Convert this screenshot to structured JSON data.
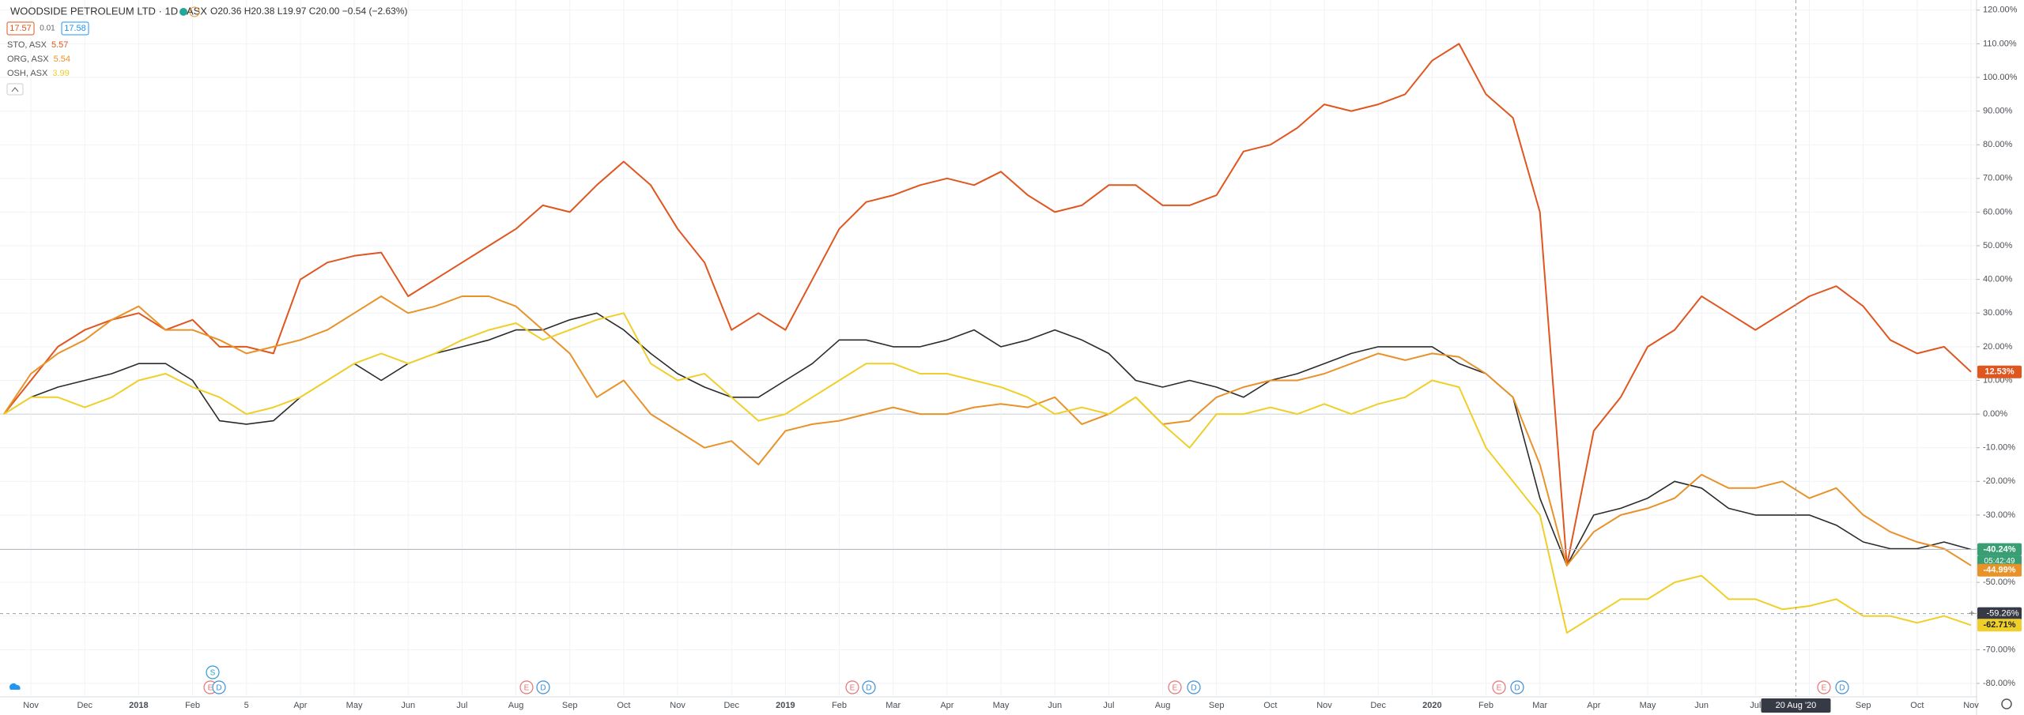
{
  "chart_data": {
    "type": "line",
    "title": "WOODSIDE PETROLEUM LTD · 1D · ASX",
    "ohlc": "O20.36 H20.38 L19.97 C20.00 −0.54 (−2.63%)",
    "bid": "17.57",
    "spread": "0.01",
    "ask": "17.58",
    "categories": [
      null,
      "Nov",
      null,
      "Dec",
      null,
      "2018",
      null,
      "Feb",
      null,
      "5",
      null,
      "Apr",
      null,
      "May",
      null,
      "Jun",
      null,
      "Jul",
      null,
      "Aug",
      null,
      "Sep",
      null,
      "Oct",
      null,
      "Nov",
      null,
      "Dec",
      null,
      "2019",
      null,
      "Feb",
      null,
      "Mar",
      null,
      "Apr",
      null,
      "May",
      null,
      "Jun",
      null,
      "Jul",
      null,
      "Aug",
      null,
      "Sep",
      null,
      "Oct",
      null,
      "Nov",
      null,
      "Dec",
      null,
      "2020",
      null,
      "Feb",
      null,
      "Mar",
      null,
      "Apr",
      null,
      "May",
      null,
      "Jun",
      null,
      "Jul",
      null,
      "Aug",
      null,
      "Sep",
      null,
      "Oct",
      null,
      "Nov"
    ],
    "main": {
      "color": "#2b2b2b",
      "price_label": "-40.24%",
      "last": -40.24,
      "countdown": "05:42:49",
      "values": [
        0,
        5,
        8,
        10,
        12,
        15,
        15,
        10,
        -2,
        -3,
        -2,
        5,
        10,
        15,
        10,
        15,
        18,
        20,
        22,
        25,
        25,
        28,
        30,
        25,
        18,
        12,
        8,
        5,
        5,
        10,
        15,
        22,
        22,
        20,
        20,
        22,
        25,
        20,
        22,
        25,
        22,
        18,
        10,
        8,
        10,
        8,
        5,
        10,
        12,
        15,
        18,
        20,
        20,
        20,
        15,
        12,
        5,
        -25,
        -45,
        -30,
        -28,
        -25,
        -20,
        -22,
        -28,
        -30,
        -30,
        -30,
        -33,
        -38,
        -40,
        -40,
        -38,
        -40.24
      ]
    },
    "series": [
      {
        "name": "STO, ASX",
        "quote": "5.57",
        "color": "#e0561f",
        "price_label": "12.53%",
        "last": 12.53,
        "values": [
          0,
          10,
          20,
          25,
          28,
          30,
          25,
          28,
          20,
          20,
          18,
          40,
          45,
          47,
          48,
          35,
          40,
          45,
          50,
          55,
          62,
          60,
          68,
          75,
          68,
          55,
          45,
          25,
          30,
          25,
          40,
          55,
          63,
          65,
          68,
          70,
          68,
          72,
          65,
          60,
          62,
          68,
          68,
          62,
          62,
          65,
          78,
          80,
          85,
          92,
          90,
          92,
          95,
          105,
          110,
          95,
          88,
          60,
          -45,
          -5,
          5,
          20,
          25,
          35,
          30,
          25,
          30,
          35,
          38,
          32,
          22,
          18,
          20,
          12.53
        ]
      },
      {
        "name": "ORG, ASX",
        "quote": "5.54",
        "color": "#e8922a",
        "price_label": "-44.99%",
        "last": -44.99,
        "values": [
          0,
          12,
          18,
          22,
          28,
          32,
          25,
          25,
          22,
          18,
          20,
          22,
          25,
          30,
          35,
          30,
          32,
          35,
          35,
          32,
          25,
          18,
          5,
          10,
          0,
          -5,
          -10,
          -8,
          -15,
          -5,
          -3,
          -2,
          0,
          2,
          0,
          0,
          2,
          3,
          2,
          5,
          -3,
          0,
          5,
          -3,
          -2,
          5,
          8,
          10,
          10,
          12,
          15,
          18,
          16,
          18,
          17,
          12,
          5,
          -15,
          -45,
          -35,
          -30,
          -28,
          -25,
          -18,
          -22,
          -22,
          -20,
          -25,
          -22,
          -30,
          -35,
          -38,
          -40,
          -44.99
        ]
      },
      {
        "name": "OSH, ASX",
        "quote": "3.99",
        "color": "#f0cf2a",
        "price_label": "-62.71%",
        "last": -62.71,
        "values": [
          0,
          5,
          5,
          2,
          5,
          10,
          12,
          8,
          5,
          0,
          2,
          5,
          10,
          15,
          18,
          15,
          18,
          22,
          25,
          27,
          22,
          25,
          28,
          30,
          15,
          10,
          12,
          5,
          -2,
          0,
          5,
          10,
          15,
          15,
          12,
          12,
          10,
          8,
          5,
          0,
          2,
          0,
          5,
          -3,
          -10,
          0,
          0,
          2,
          0,
          3,
          0,
          3,
          5,
          10,
          8,
          -10,
          -20,
          -30,
          -65,
          -60,
          -55,
          -55,
          -50,
          -48,
          -55,
          -55,
          -58,
          -57,
          -55,
          -60,
          -60,
          -62,
          -60,
          -62.71
        ]
      }
    ],
    "crosshair": {
      "date": "20 Aug '20",
      "value": -59.26,
      "label": "-59.26%"
    },
    "events": [
      "S",
      "E",
      "D",
      "E",
      "D",
      "E",
      "D",
      "E",
      "D",
      "E",
      "D",
      "E",
      "D"
    ],
    "ylim": [
      -84,
      123
    ],
    "yticks": [
      {
        "value": -80,
        "label": "-80.00%"
      },
      {
        "value": -70,
        "label": "-70.00%"
      },
      {
        "value": -60,
        "label": "-60.00%"
      },
      {
        "value": -50,
        "label": "-50.00%"
      },
      {
        "value": -40,
        "label": "-40.00%"
      },
      {
        "value": -30,
        "label": "-30.00%"
      },
      {
        "value": -20,
        "label": "-20.00%"
      },
      {
        "value": -10,
        "label": "-10.00%"
      },
      {
        "value": 0,
        "label": "0.00%"
      },
      {
        "value": 10,
        "label": "10.00%"
      },
      {
        "value": 20,
        "label": "20.00%"
      },
      {
        "value": 30,
        "label": "30.00%"
      },
      {
        "value": 40,
        "label": "40.00%"
      },
      {
        "value": 50,
        "label": "50.00%"
      },
      {
        "value": 60,
        "label": "60.00%"
      },
      {
        "value": 70,
        "label": "70.00%"
      },
      {
        "value": 80,
        "label": "80.00%"
      },
      {
        "value": 90,
        "label": "90.00%"
      },
      {
        "value": 100,
        "label": "100.00%"
      },
      {
        "value": 110,
        "label": "110.00%"
      },
      {
        "value": 120,
        "label": "120.00%"
      }
    ],
    "grid": true
  }
}
